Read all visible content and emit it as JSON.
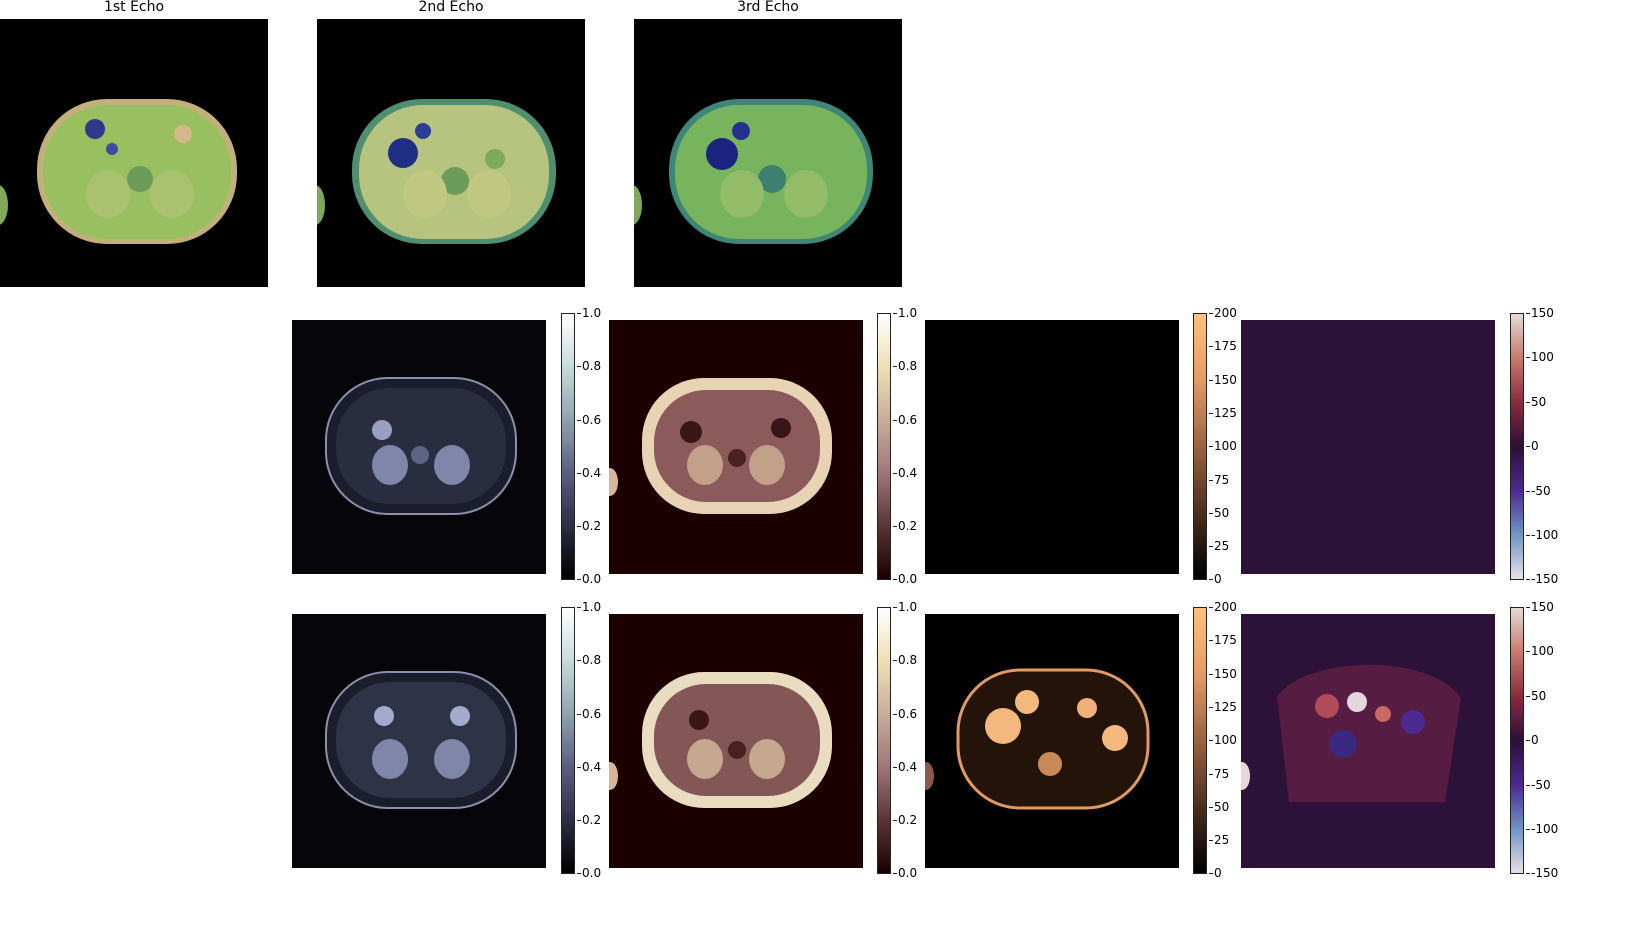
{
  "titles": {
    "echo1": "1st Echo",
    "echo2": "2nd Echo",
    "echo3": "3rd Echo"
  },
  "colorbars": {
    "unit": [
      "0.0",
      "0.2",
      "0.4",
      "0.6",
      "0.8",
      "1.0"
    ],
    "r2": [
      "0",
      "25",
      "50",
      "75",
      "100",
      "125",
      "150",
      "175",
      "200"
    ],
    "field": [
      "-150",
      "-100",
      "-50",
      "0",
      "50",
      "100",
      "150"
    ]
  },
  "palette": {
    "echo_bg": "#000000",
    "mag_bg": "#05050a",
    "pink_bg": "#1c0000",
    "r2_bg": "#000000",
    "field_bg": "#2c1238"
  }
}
